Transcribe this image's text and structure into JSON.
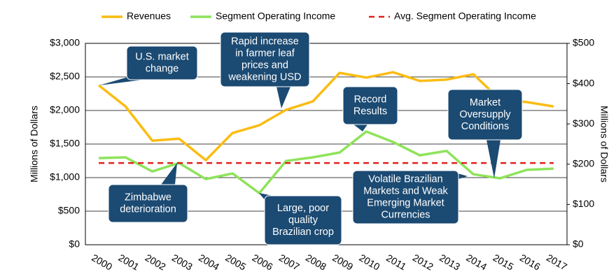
{
  "chart_data": {
    "type": "line",
    "categories": [
      "2000",
      "2001",
      "2002",
      "2003",
      "2004",
      "2005",
      "2006",
      "2007",
      "2008",
      "2009",
      "2010",
      "2011",
      "2012",
      "2013",
      "2014",
      "2015",
      "2016",
      "2017"
    ],
    "series": [
      {
        "name": "Revenues",
        "color": "#fbbc12",
        "values": [
          2375,
          2060,
          1550,
          1580,
          1260,
          1665,
          1780,
          2010,
          2135,
          2560,
          2490,
          2570,
          2440,
          2460,
          2540,
          2160,
          2125,
          2060
        ]
      },
      {
        "name": "Segment Operating Income",
        "color": "#8ee35a",
        "axis": "y2",
        "values": [
          215,
          217,
          182,
          203,
          163,
          177,
          128,
          208,
          217,
          229,
          281,
          255,
          222,
          233,
          175,
          165,
          186,
          189
        ]
      },
      {
        "name": "Avg. Segment Operating Income",
        "color": "#e0201b",
        "axis": "y2",
        "dashed": true,
        "value": 203
      }
    ],
    "ylabel": "Millions of Dollars",
    "y2label": "Millions of Dollars",
    "ylim": [
      0,
      3000
    ],
    "yticks": [
      {
        "value": 0,
        "label": "$0"
      },
      {
        "value": 500,
        "label": "$500"
      },
      {
        "value": 1000,
        "label": "$1,000"
      },
      {
        "value": 1500,
        "label": "$1,500"
      },
      {
        "value": 2000,
        "label": "$2,000"
      },
      {
        "value": 2500,
        "label": "$2,500"
      },
      {
        "value": 3000,
        "label": "$3,000"
      }
    ],
    "y2lim": [
      0,
      500
    ],
    "y2ticks": [
      {
        "value": 0,
        "label": "$0"
      },
      {
        "value": 100,
        "label": "$100"
      },
      {
        "value": 200,
        "label": "$200"
      },
      {
        "value": 300,
        "label": "$300"
      },
      {
        "value": 400,
        "label": "$400"
      },
      {
        "value": 500,
        "label": "$500"
      }
    ],
    "grid": true,
    "legend": "top",
    "annotations": [
      {
        "lines": [
          "U.S. market",
          "change"
        ]
      },
      {
        "lines": [
          "Rapid increase",
          "in farmer leaf",
          "prices and",
          "weakening USD"
        ]
      },
      {
        "lines": [
          "Record",
          "Results"
        ]
      },
      {
        "lines": [
          "Market",
          "Oversupply",
          "Conditions"
        ]
      },
      {
        "lines": [
          "Zimbabwe",
          "deterioration"
        ]
      },
      {
        "lines": [
          "Large, poor",
          "quality",
          "Brazilian crop"
        ]
      },
      {
        "lines": [
          "Volatile Brazilian",
          "Markets and Weak",
          "Emerging Market",
          "Currencies"
        ]
      }
    ]
  }
}
